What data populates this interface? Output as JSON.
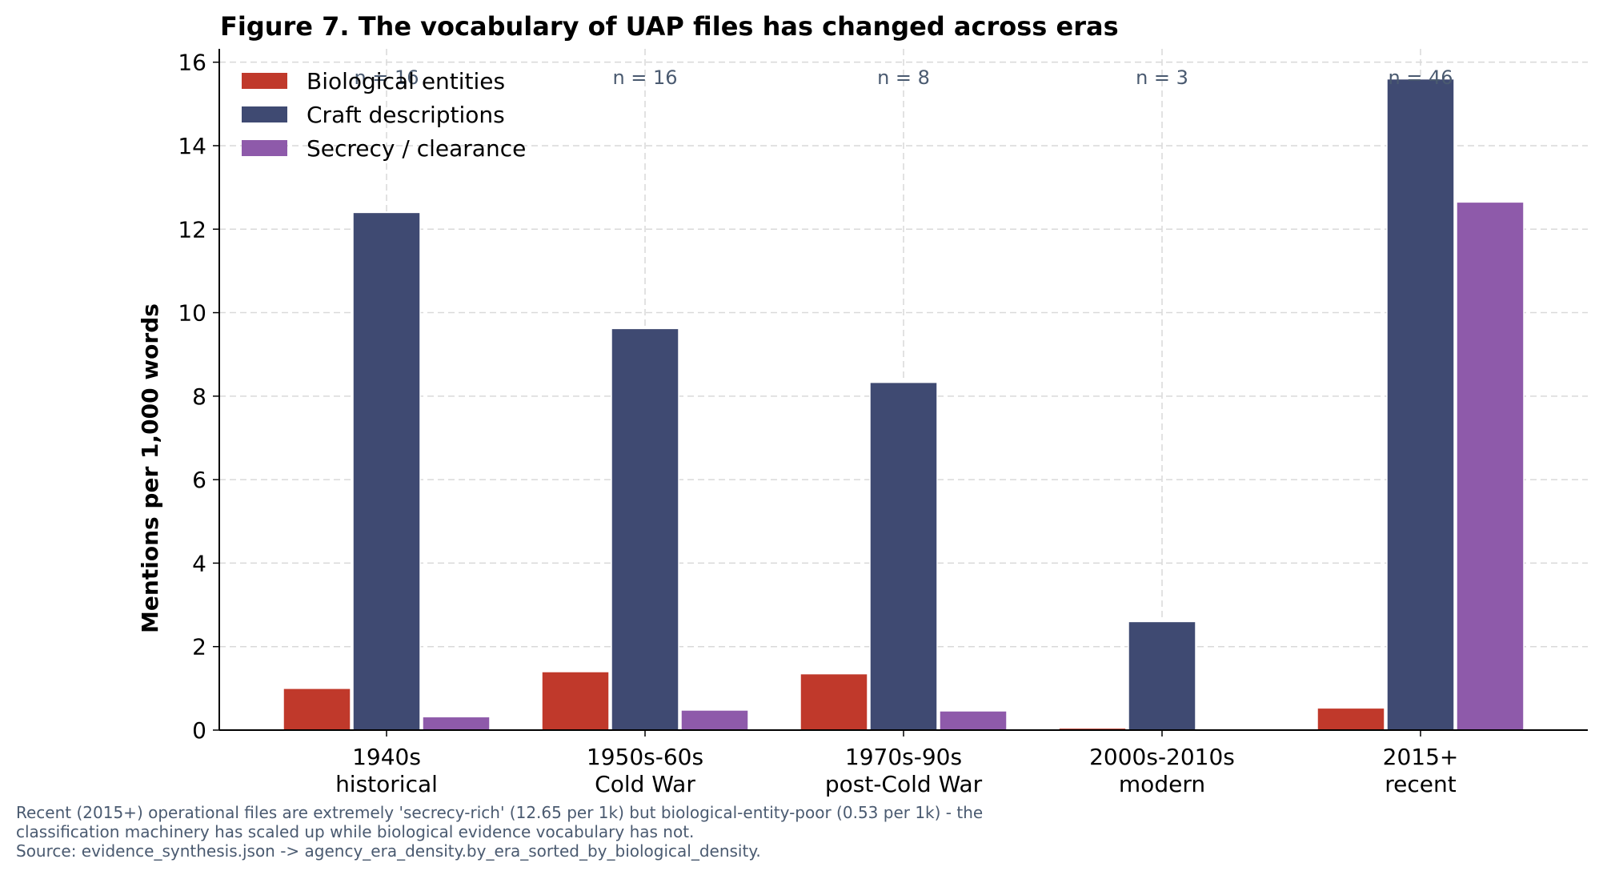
{
  "chart_data": {
    "type": "bar",
    "title": "Figure 7. The vocabulary of UAP files has changed across eras",
    "xlabel": "",
    "ylabel": "Mentions per 1,000 words",
    "ylim": [
      0,
      16
    ],
    "yticks": [
      0,
      2,
      4,
      6,
      8,
      10,
      12,
      14,
      16
    ],
    "grid": true,
    "legend_position": "top-left",
    "categories": [
      [
        "1940s",
        "historical"
      ],
      [
        "1950s-60s",
        "Cold War"
      ],
      [
        "1970s-90s",
        "post-Cold War"
      ],
      [
        "2000s-2010s",
        "modern"
      ],
      [
        "2015+",
        "recent"
      ]
    ],
    "n_labels": [
      "n = 16",
      "n = 16",
      "n = 8",
      "n = 3",
      "n = 46"
    ],
    "series": [
      {
        "name": "Biological entities",
        "color": "#c0392b",
        "values": [
          1.0,
          1.4,
          1.35,
          0.05,
          0.53
        ]
      },
      {
        "name": "Craft descriptions",
        "color": "#3f4a72",
        "values": [
          12.4,
          9.62,
          8.33,
          2.6,
          15.6
        ]
      },
      {
        "name": "Secrecy / clearance",
        "color": "#8e5aaa",
        "values": [
          0.32,
          0.48,
          0.46,
          0.02,
          12.65
        ]
      }
    ]
  },
  "caption": {
    "line1": "Recent (2015+) operational files are extremely 'secrecy-rich' (12.65 per 1k) but biological-entity-poor (0.53 per 1k) - the",
    "line2": "classification machinery has scaled up while biological evidence vocabulary has not.",
    "line3": "Source: evidence_synthesis.json -> agency_era_density.by_era_sorted_by_biological_density."
  }
}
